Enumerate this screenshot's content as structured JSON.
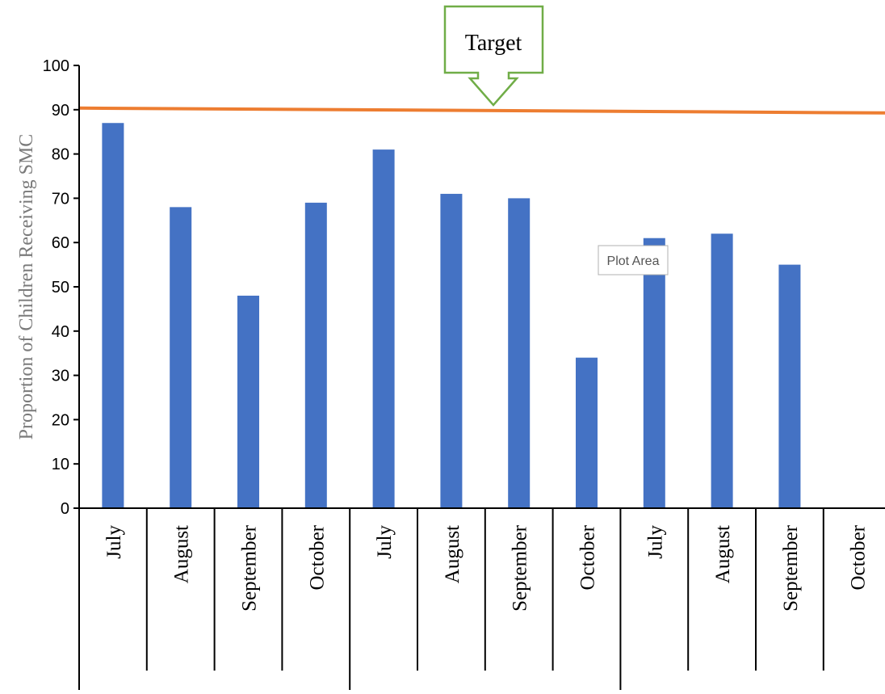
{
  "chart_data": {
    "type": "bar",
    "categories": [
      "July",
      "August",
      "September",
      "October",
      "July",
      "August",
      "September",
      "October",
      "July",
      "August",
      "September",
      "October"
    ],
    "values": [
      87,
      68,
      48,
      69,
      81,
      71,
      70,
      34,
      61,
      62,
      55,
      null
    ],
    "title": "",
    "xlabel": "",
    "ylabel": "Proportion of Children Receiving SMC",
    "ylim": [
      0,
      100
    ],
    "yticks": [
      0,
      10,
      20,
      30,
      40,
      50,
      60,
      70,
      80,
      90,
      100
    ],
    "grid": false,
    "legend": "none",
    "target": {
      "label": "Target",
      "value": 90
    },
    "tooltip": "Plot Area",
    "colors": {
      "bar": "#4472C4",
      "target_line": "#ED7D31",
      "callout_border": "#70AD47",
      "axis": "#000000",
      "ylabel": "#7a7a7a"
    }
  }
}
